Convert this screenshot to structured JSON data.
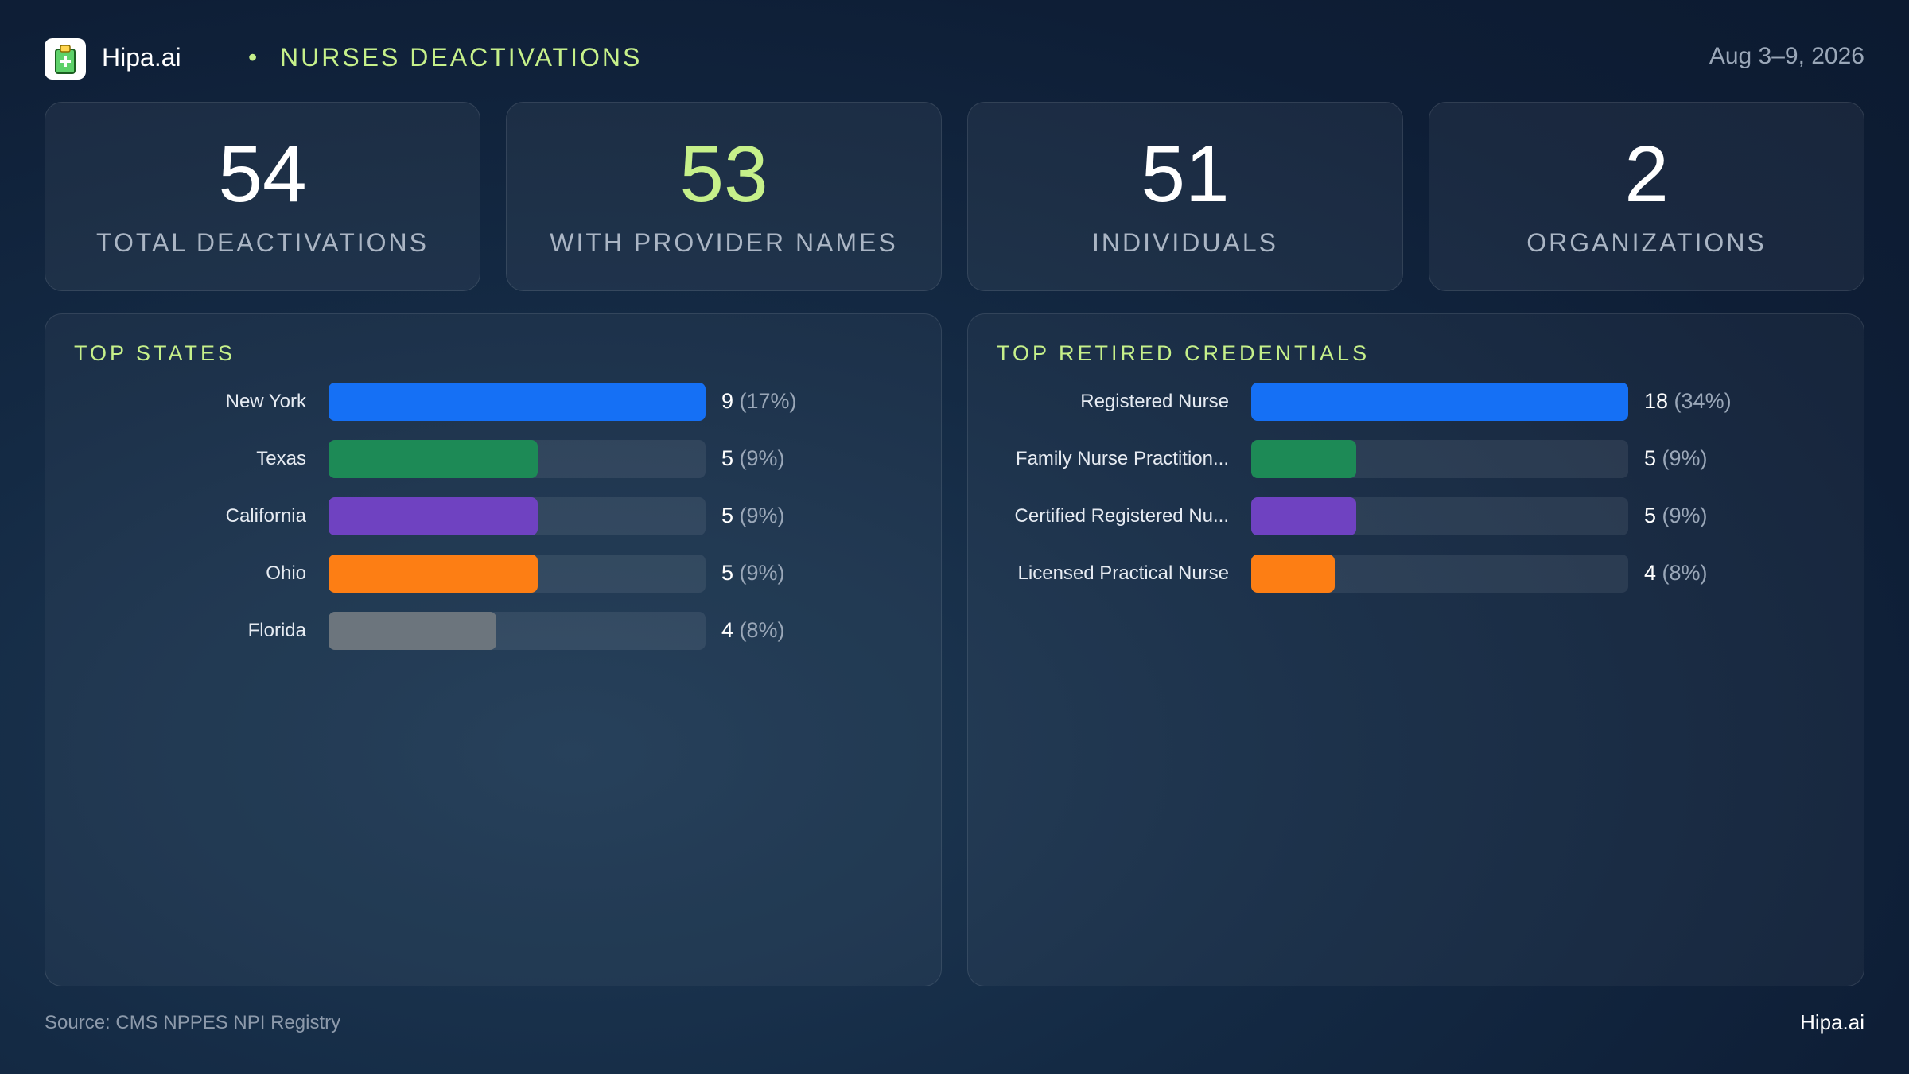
{
  "header": {
    "brand": "Hipa.ai",
    "separator": "•",
    "title": "NURSES DEACTIVATIONS",
    "date_range": "Aug 3–9, 2026",
    "logo_icon": "medical-clipboard-icon"
  },
  "stats": [
    {
      "value": "54",
      "label": "TOTAL DEACTIVATIONS",
      "accent": false
    },
    {
      "value": "53",
      "label": "WITH PROVIDER NAMES",
      "accent": true
    },
    {
      "value": "51",
      "label": "INDIVIDUALS",
      "accent": false
    },
    {
      "value": "2",
      "label": "ORGANIZATIONS",
      "accent": false
    }
  ],
  "chart_data": [
    {
      "type": "bar",
      "orientation": "horizontal",
      "title": "TOP STATES",
      "categories": [
        "New York",
        "Texas",
        "California",
        "Ohio",
        "Florida"
      ],
      "values": [
        9,
        5,
        5,
        5,
        4
      ],
      "percent_labels": [
        "(17%)",
        "(9%)",
        "(9%)",
        "(9%)",
        "(8%)"
      ],
      "colors": [
        "#1570f5",
        "#1d8a56",
        "#6f42c1",
        "#fd7e14",
        "#6c757d"
      ],
      "xlim": [
        0,
        9
      ]
    },
    {
      "type": "bar",
      "orientation": "horizontal",
      "title": "TOP RETIRED CREDENTIALS",
      "categories": [
        "Registered Nurse",
        "Family Nurse Practition...",
        "Certified Registered Nu...",
        "Licensed Practical Nurse"
      ],
      "values": [
        18,
        5,
        5,
        4
      ],
      "percent_labels": [
        "(34%)",
        "(9%)",
        "(9%)",
        "(8%)"
      ],
      "colors": [
        "#1570f5",
        "#1d8a56",
        "#6f42c1",
        "#fd7e14"
      ],
      "xlim": [
        0,
        18
      ]
    }
  ],
  "footer": {
    "source": "Source: CMS NPPES NPI Registry",
    "brand": "Hipa.ai"
  }
}
